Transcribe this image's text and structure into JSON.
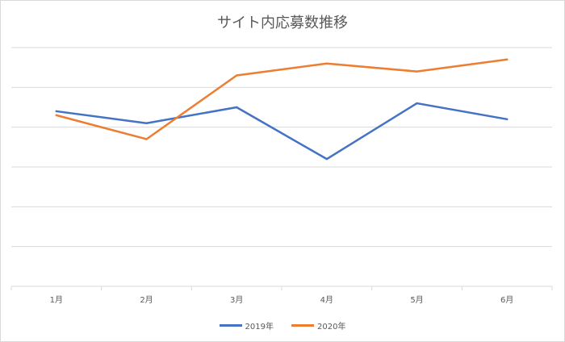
{
  "chart_data": {
    "type": "line",
    "title": "サイト内応募数推移",
    "categories": [
      "1月",
      "2月",
      "3月",
      "4月",
      "5月",
      "6月"
    ],
    "series": [
      {
        "name": "2019年",
        "color": "#4472c4",
        "values": [
          44,
          41,
          45,
          32,
          46,
          42
        ]
      },
      {
        "name": "2020年",
        "color": "#ed7d31",
        "values": [
          43,
          37,
          53,
          56,
          54,
          57
        ]
      }
    ],
    "ylim": [
      0,
      60
    ],
    "y_tick_labels_visible": false,
    "grid": true,
    "legend_position": "bottom"
  }
}
